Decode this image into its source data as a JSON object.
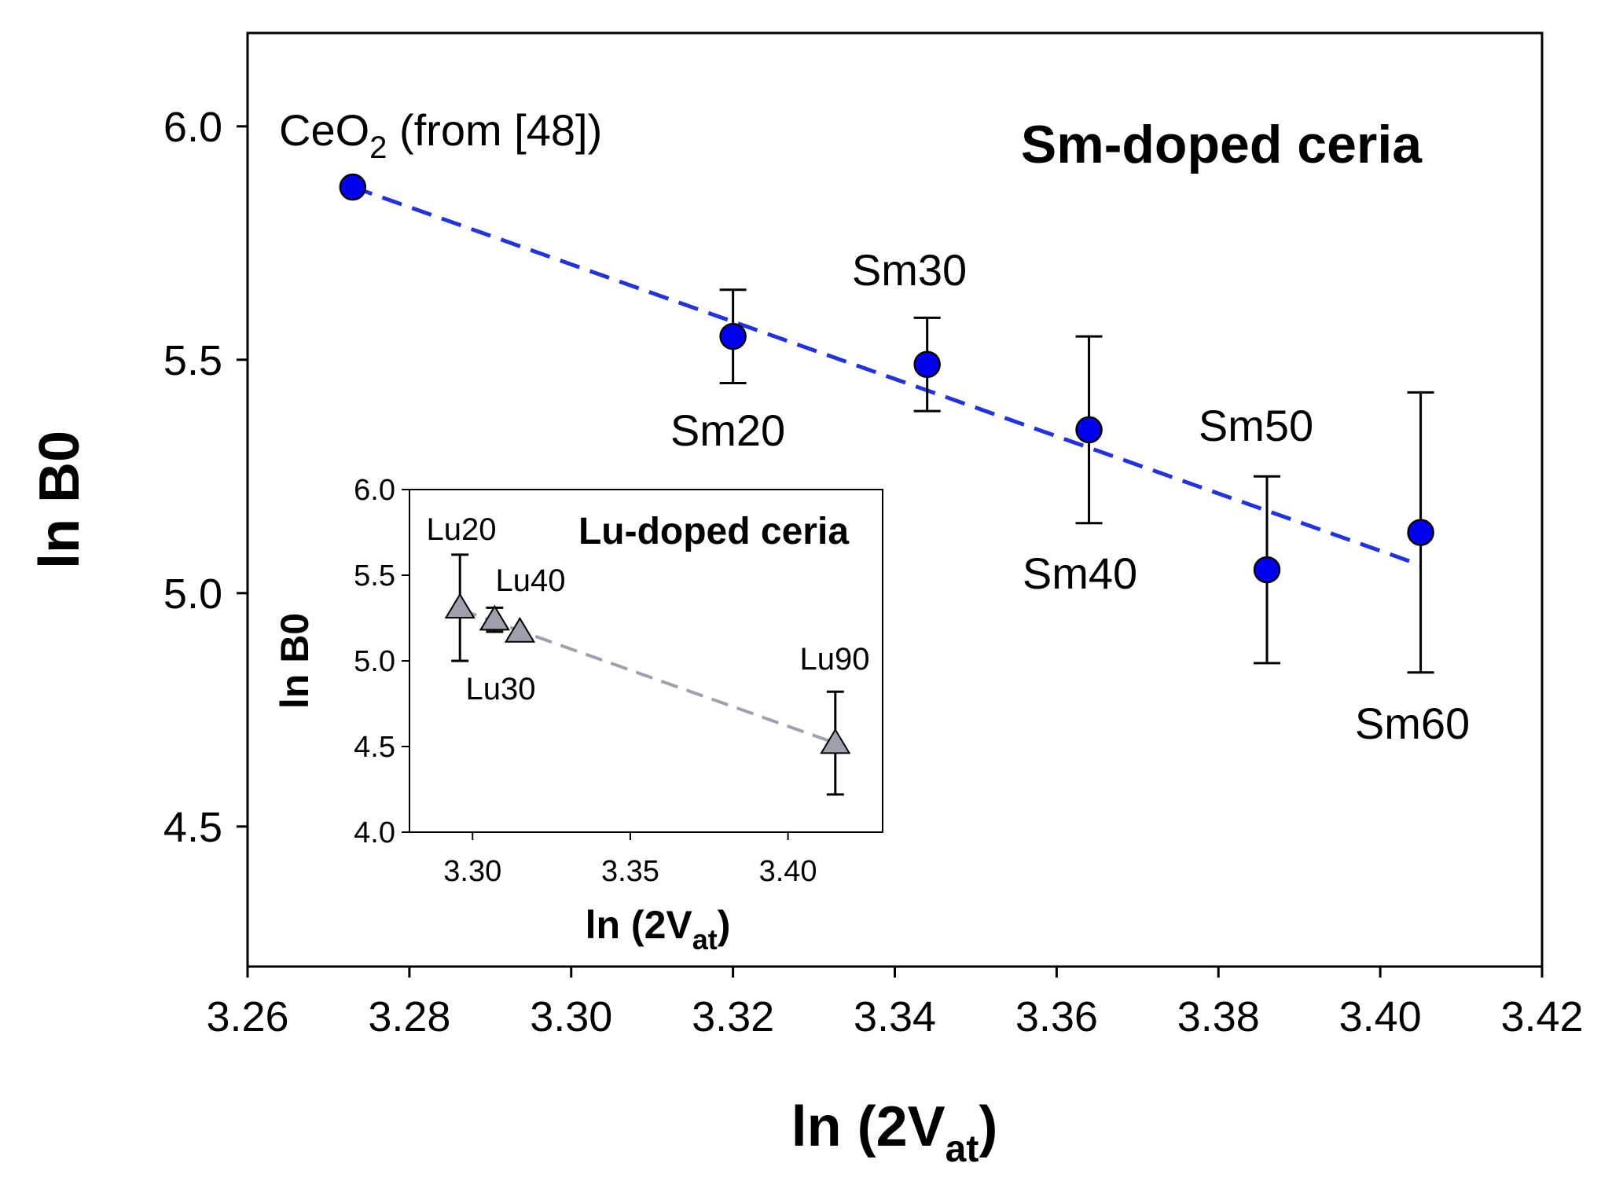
{
  "chart_data": [
    {
      "type": "scatter",
      "title": "Sm-doped ceria",
      "xlabel": "ln (2V",
      "xlabel_sub": "at",
      "xlabel_close": ")",
      "ylabel": "ln B",
      "ylabel_sub": "0",
      "xlim": [
        3.26,
        3.42
      ],
      "ylim": [
        4.2,
        6.2
      ],
      "xticks": [
        "3.26",
        "3.28",
        "3.30",
        "3.32",
        "3.34",
        "3.36",
        "3.38",
        "3.40",
        "3.42"
      ],
      "xtick_values": [
        3.26,
        3.28,
        3.3,
        3.32,
        3.34,
        3.36,
        3.38,
        3.4,
        3.42
      ],
      "yticks": [
        "4.5",
        "5.0",
        "5.5",
        "6.0"
      ],
      "ytick_values": [
        4.5,
        5.0,
        5.5,
        6.0
      ],
      "color": "#0000ee",
      "fit_line": {
        "style": "dashed",
        "color": "#2233dd",
        "from": [
          3.273,
          5.87
        ],
        "to": [
          3.405,
          5.06
        ]
      },
      "points": [
        {
          "label": "CeO",
          "label_sub": "2",
          "label_suffix": " (from [48])",
          "x": 3.273,
          "y": 5.87,
          "err": null,
          "label_pos": "above"
        },
        {
          "label": "Sm20",
          "x": 3.32,
          "y": 5.55,
          "err": 0.1,
          "label_pos": "below"
        },
        {
          "label": "Sm30",
          "x": 3.344,
          "y": 5.49,
          "err": 0.1,
          "label_pos": "above"
        },
        {
          "label": "Sm40",
          "x": 3.364,
          "y": 5.35,
          "err": 0.2,
          "label_pos": "below"
        },
        {
          "label": "Sm50",
          "x": 3.386,
          "y": 5.05,
          "err": 0.2,
          "label_pos": "above"
        },
        {
          "label": "Sm60",
          "x": 3.405,
          "y": 5.13,
          "err": 0.3,
          "label_pos": "below"
        }
      ]
    },
    {
      "type": "scatter",
      "title": "Lu-doped ceria",
      "xlabel": "ln (2V",
      "xlabel_sub": "at",
      "xlabel_close": ")",
      "ylabel": "ln B",
      "ylabel_sub": "0",
      "xlim": [
        3.28,
        3.43
      ],
      "ylim": [
        4.0,
        6.0
      ],
      "xticks": [
        "3.30",
        "3.35",
        "3.40"
      ],
      "xtick_values": [
        3.3,
        3.35,
        3.4
      ],
      "yticks": [
        "4.0",
        "4.5",
        "5.0",
        "5.5",
        "6.0"
      ],
      "ytick_values": [
        4.0,
        4.5,
        5.0,
        5.5,
        6.0
      ],
      "color": "#9ea0ad",
      "fit_line": {
        "style": "dashed",
        "color": "#9ea0b0",
        "from": [
          3.296,
          5.3
        ],
        "to": [
          3.415,
          4.52
        ]
      },
      "points": [
        {
          "label": "Lu20",
          "x": 3.296,
          "y": 5.31,
          "err": 0.31
        },
        {
          "label": "Lu40",
          "x": 3.307,
          "y": 5.24,
          "err": 0.07
        },
        {
          "label": "Lu30",
          "x": 3.315,
          "y": 5.17,
          "err": null
        },
        {
          "label": "Lu90",
          "x": 3.415,
          "y": 4.52,
          "err": 0.3
        }
      ]
    }
  ]
}
